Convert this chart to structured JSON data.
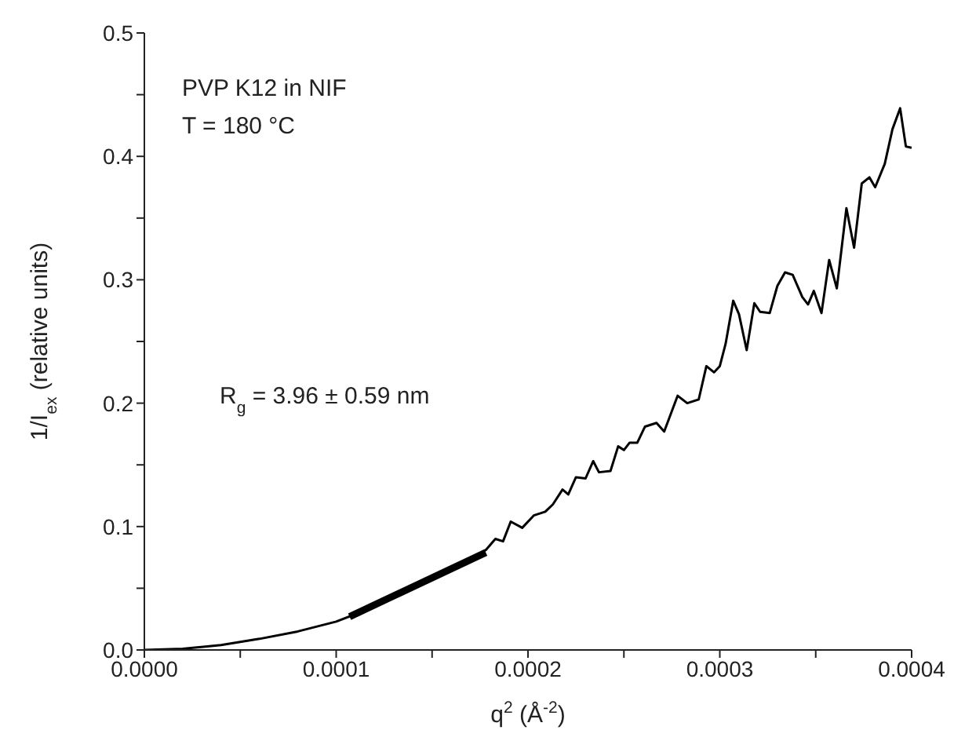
{
  "chart_data": {
    "type": "line",
    "xlabel": "q$^{2}$ (Å$^{-2}$)",
    "ylabel": "1/I$_{ex}$ (relative units)",
    "annotations": [
      "PVP K12 in NIF",
      "T = 180 °C",
      "R$_{g}$ = 3.96 ± 0.59 nm"
    ],
    "xlim": [
      0,
      0.0004
    ],
    "ylim": [
      0,
      0.5
    ],
    "xticks": [
      {
        "value": 0,
        "label": "0.0000"
      },
      {
        "value": 5e-05,
        "label": null
      },
      {
        "value": 0.0001,
        "label": "0.0001"
      },
      {
        "value": 0.00015,
        "label": null
      },
      {
        "value": 0.0002,
        "label": "0.0002"
      },
      {
        "value": 0.00025,
        "label": null
      },
      {
        "value": 0.0003,
        "label": "0.0003"
      },
      {
        "value": 0.00035,
        "label": null
      },
      {
        "value": 0.0004,
        "label": "0.0004"
      }
    ],
    "yticks": [
      {
        "value": 0,
        "label": "0.0"
      },
      {
        "value": 0.05,
        "label": null
      },
      {
        "value": 0.1,
        "label": "0.1"
      },
      {
        "value": 0.15,
        "label": null
      },
      {
        "value": 0.2,
        "label": "0.2"
      },
      {
        "value": 0.25,
        "label": null
      },
      {
        "value": 0.3,
        "label": "0.3"
      },
      {
        "value": 0.35,
        "label": null
      },
      {
        "value": 0.4,
        "label": "0.4"
      },
      {
        "value": 0.45,
        "label": null
      },
      {
        "value": 0.5,
        "label": "0.5"
      }
    ],
    "series": [
      {
        "color": "#000000",
        "x": [
          0,
          2e-05,
          4e-05,
          6e-05,
          8e-05,
          0.0001,
          0.00012,
          0.00014,
          0.00016,
          0.000178,
          0.000183,
          0.000187,
          0.000191,
          0.000197,
          0.000203,
          0.000209,
          0.000213,
          0.000218,
          0.000221,
          0.000225,
          0.00023,
          0.000234,
          0.000237,
          0.000243,
          0.000247,
          0.00025,
          0.000253,
          0.000257,
          0.000261,
          0.000267,
          0.000271,
          0.000278,
          0.000283,
          0.000289,
          0.000293,
          0.000297,
          0.0003,
          0.000303,
          0.000307,
          0.00031,
          0.000314,
          0.000318,
          0.000321,
          0.000326,
          0.00033,
          0.000334,
          0.000338,
          0.000343,
          0.000346,
          0.000349,
          0.000353,
          0.000357,
          0.000361,
          0.000366,
          0.00037,
          0.000374,
          0.000378,
          0.000381,
          0.000386,
          0.00039,
          0.000394,
          0.000397,
          0.0004
        ],
        "values": [
          0,
          0.001,
          0.004,
          0.009,
          0.015,
          0.023,
          0.035,
          0.05,
          0.065,
          0.081,
          0.09,
          0.088,
          0.104,
          0.099,
          0.109,
          0.112,
          0.118,
          0.13,
          0.126,
          0.14,
          0.139,
          0.153,
          0.144,
          0.145,
          0.165,
          0.162,
          0.168,
          0.168,
          0.181,
          0.184,
          0.177,
          0.206,
          0.2,
          0.203,
          0.23,
          0.225,
          0.23,
          0.248,
          0.283,
          0.272,
          0.243,
          0.281,
          0.274,
          0.273,
          0.295,
          0.306,
          0.304,
          0.286,
          0.28,
          0.291,
          0.273,
          0.316,
          0.293,
          0.358,
          0.326,
          0.378,
          0.383,
          0.375,
          0.394,
          0.422,
          0.439,
          0.408,
          0.407
        ]
      },
      {
        "type": "line",
        "color": "#000000",
        "x": [
          0.000107,
          0.000178
        ],
        "values": [
          0.027,
          0.079
        ]
      }
    ]
  }
}
